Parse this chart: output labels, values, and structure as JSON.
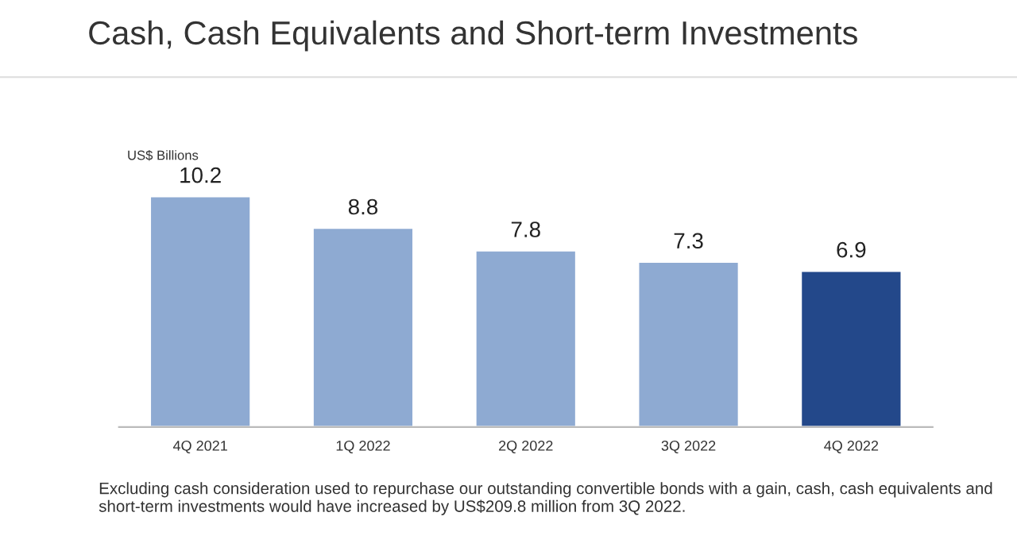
{
  "chart_data": {
    "type": "bar",
    "title": "Cash, Cash Equivalents and Short-term Investments",
    "ylabel": "US$ Billions",
    "categories": [
      "4Q 2021",
      "1Q 2022",
      "2Q 2022",
      "3Q 2022",
      "4Q 2022"
    ],
    "values": [
      10.2,
      8.8,
      7.8,
      7.3,
      6.9
    ],
    "colors": [
      "#8eaad2",
      "#8eaad2",
      "#8eaad2",
      "#8eaad2",
      "#23488a"
    ],
    "data_labels": true,
    "grid": false,
    "legend": false,
    "tick_labels": "x",
    "annotations": [
      "Excluding cash consideration used to repurchase our outstanding convertible bonds with a gain, cash, cash equivalents and short-term investments would have increased by US$209.8 million from 3Q 2022."
    ]
  }
}
